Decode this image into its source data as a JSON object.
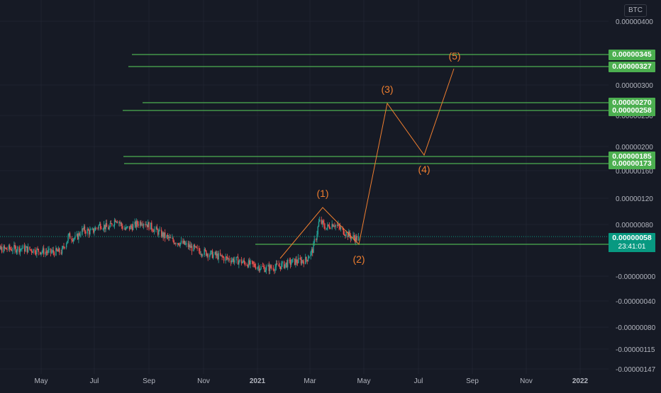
{
  "chart_data": {
    "type": "line",
    "title": "",
    "currency": "BTC",
    "y_axis": {
      "ticks": [
        "0.00000400",
        "0.00000300",
        "0.00000250",
        "0.00000200",
        "0.00000160",
        "0.00000120",
        "0.00000080",
        "-0.00000000",
        "-0.00000040",
        "-0.00000080",
        "-0.00000115",
        "-0.00000147"
      ]
    },
    "x_axis": {
      "ticks": [
        "May",
        "Jul",
        "Sep",
        "Nov",
        "2021",
        "Mar",
        "May",
        "Jul",
        "Sep",
        "Nov",
        "2022"
      ],
      "bold_ticks": [
        "2021",
        "2022"
      ]
    },
    "current_price": "0.00000058",
    "countdown": "23:41:01",
    "horizontal_levels": [
      {
        "label": "0.00000345",
        "value": 3.45e-06
      },
      {
        "label": "0.00000327",
        "value": 3.27e-06
      },
      {
        "label": "0.00000270",
        "value": 2.7e-06
      },
      {
        "label": "0.00000258",
        "value": 2.58e-06
      },
      {
        "label": "0.00000185",
        "value": 1.85e-06
      },
      {
        "label": "0.00000173",
        "value": 1.73e-06
      },
      {
        "label": "0.00000047",
        "value": 4.7e-07
      }
    ],
    "wave_points": [
      {
        "label": "",
        "date": "2021-01-20",
        "value": 1e-07
      },
      {
        "label": "(1)",
        "date": "2021-03-15",
        "value": 1.05e-06
      },
      {
        "label": "(2)",
        "date": "2021-04-30",
        "value": 4.7e-07
      },
      {
        "label": "(3)",
        "date": "2021-06-20",
        "value": 2.66e-06
      },
      {
        "label": "(4)",
        "date": "2021-07-25",
        "value": 1.83e-06
      },
      {
        "label": "(5)",
        "date": "2021-08-30",
        "value": 3.27e-06
      }
    ],
    "price_series": [
      {
        "date": "2020-03-01",
        "value": 4e-07
      },
      {
        "date": "2020-03-20",
        "value": 4.2e-07
      },
      {
        "date": "2020-04-10",
        "value": 4.3e-07
      },
      {
        "date": "2020-04-25",
        "value": 4e-07
      },
      {
        "date": "2020-05-10",
        "value": 3.7e-07
      },
      {
        "date": "2020-05-25",
        "value": 3.8e-07
      },
      {
        "date": "2020-06-02",
        "value": 6.2e-07
      },
      {
        "date": "2020-06-10",
        "value": 5.8e-07
      },
      {
        "date": "2020-06-18",
        "value": 7.2e-07
      },
      {
        "date": "2020-06-28",
        "value": 6.8e-07
      },
      {
        "date": "2020-07-08",
        "value": 8e-07
      },
      {
        "date": "2020-07-18",
        "value": 7.4e-07
      },
      {
        "date": "2020-07-26",
        "value": 9e-07
      },
      {
        "date": "2020-08-05",
        "value": 7.2e-07
      },
      {
        "date": "2020-08-15",
        "value": 7.8e-07
      },
      {
        "date": "2020-08-25",
        "value": 8.5e-07
      },
      {
        "date": "2020-09-05",
        "value": 7.5e-07
      },
      {
        "date": "2020-09-15",
        "value": 6.5e-07
      },
      {
        "date": "2020-09-28",
        "value": 5.5e-07
      },
      {
        "date": "2020-10-10",
        "value": 5e-07
      },
      {
        "date": "2020-10-25",
        "value": 4e-07
      },
      {
        "date": "2020-11-10",
        "value": 3.4e-07
      },
      {
        "date": "2020-11-25",
        "value": 2.8e-07
      },
      {
        "date": "2020-12-10",
        "value": 2.4e-07
      },
      {
        "date": "2020-12-25",
        "value": 1.8e-07
      },
      {
        "date": "2021-01-10",
        "value": 1.2e-07
      },
      {
        "date": "2021-01-25",
        "value": 1.5e-07
      },
      {
        "date": "2021-02-10",
        "value": 2.2e-07
      },
      {
        "date": "2021-02-25",
        "value": 2.5e-07
      },
      {
        "date": "2021-03-05",
        "value": 4.2e-07
      },
      {
        "date": "2021-03-12",
        "value": 8.5e-07
      },
      {
        "date": "2021-03-20",
        "value": 7.5e-07
      },
      {
        "date": "2021-03-28",
        "value": 8.2e-07
      },
      {
        "date": "2021-04-08",
        "value": 7e-07
      },
      {
        "date": "2021-04-18",
        "value": 6e-07
      },
      {
        "date": "2021-04-25",
        "value": 5.8e-07
      }
    ],
    "colors": {
      "background": "#161a25",
      "level_line": "#4caf50",
      "wave_line": "#ef7e2f",
      "candle_up": "#26a69a",
      "candle_down": "#ef5350",
      "axis_text": "#b2b5be"
    }
  }
}
